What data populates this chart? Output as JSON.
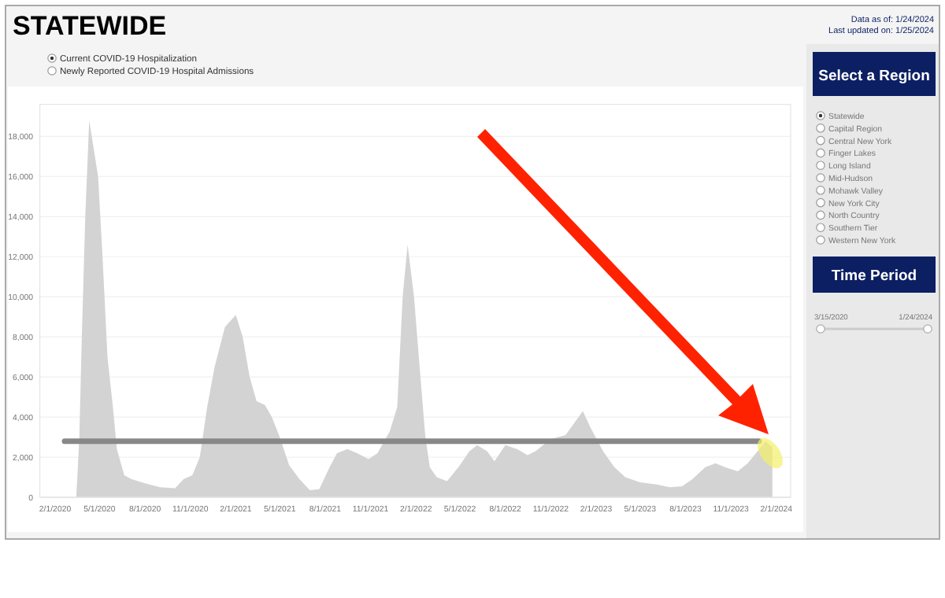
{
  "chart_data": {
    "type": "area",
    "title": "STATEWIDE",
    "x": [
      "2020-03-15",
      "2020-03-17",
      "2020-03-21",
      "2020-03-26",
      "2020-04-02",
      "2020-04-10",
      "2020-04-28",
      "2020-05-07",
      "2020-05-17",
      "2020-05-28",
      "2020-06-05",
      "2020-06-20",
      "2020-07-05",
      "2020-08-01",
      "2020-09-01",
      "2020-10-01",
      "2020-10-18",
      "2020-11-05",
      "2020-11-20",
      "2020-12-05",
      "2020-12-20",
      "2021-01-10",
      "2021-02-01",
      "2021-02-15",
      "2021-03-01",
      "2021-03-15",
      "2021-04-01",
      "2021-04-15",
      "2021-05-01",
      "2021-05-20",
      "2021-06-10",
      "2021-07-01",
      "2021-07-20",
      "2021-08-10",
      "2021-08-25",
      "2021-09-15",
      "2021-10-05",
      "2021-10-28",
      "2021-11-15",
      "2021-12-10",
      "2021-12-25",
      "2022-01-05",
      "2022-01-15",
      "2022-01-28",
      "2022-02-10",
      "2022-02-20",
      "2022-03-01",
      "2022-03-15",
      "2022-04-05",
      "2022-05-01",
      "2022-05-20",
      "2022-06-05",
      "2022-06-25",
      "2022-07-10",
      "2022-08-01",
      "2022-08-25",
      "2022-09-15",
      "2022-10-01",
      "2022-11-01",
      "2022-12-01",
      "2023-01-05",
      "2023-01-20",
      "2023-02-15",
      "2023-03-10",
      "2023-04-01",
      "2023-05-01",
      "2023-06-01",
      "2023-07-01",
      "2023-07-25",
      "2023-08-15",
      "2023-09-10",
      "2023-10-01",
      "2023-10-20",
      "2023-11-15",
      "2023-12-05",
      "2023-12-25",
      "2024-01-10",
      "2024-01-24"
    ],
    "series": [
      {
        "color": "#d3d3d3",
        "values": [
          200,
          1000,
          3000,
          8000,
          14000,
          18800,
          16000,
          12000,
          7000,
          4500,
          2400,
          1100,
          900,
          700,
          500,
          450,
          900,
          1100,
          2000,
          4500,
          6500,
          8500,
          9100,
          8000,
          6000,
          4800,
          4600,
          4000,
          3000,
          1600,
          900,
          350,
          400,
          1500,
          2200,
          2400,
          2200,
          1900,
          2200,
          3300,
          4500,
          10000,
          12600,
          10000,
          6000,
          3000,
          1500,
          1000,
          800,
          1600,
          2300,
          2600,
          2300,
          1800,
          2600,
          2400,
          2100,
          2300,
          2900,
          3100,
          4300,
          3500,
          2300,
          1500,
          1000,
          750,
          650,
          500,
          550,
          900,
          1500,
          1700,
          1500,
          1300,
          1700,
          2300,
          2800,
          2500
        ]
      }
    ],
    "xlim": [
      "2020-01-01",
      "2024-03-01"
    ],
    "xticks": [
      {
        "value": "2020-02-01",
        "label": "2/1/2020"
      },
      {
        "value": "2020-05-01",
        "label": "5/1/2020"
      },
      {
        "value": "2020-08-01",
        "label": "8/1/2020"
      },
      {
        "value": "2020-11-01",
        "label": "11/1/2020"
      },
      {
        "value": "2021-02-01",
        "label": "2/1/2021"
      },
      {
        "value": "2021-05-01",
        "label": "5/1/2021"
      },
      {
        "value": "2021-08-01",
        "label": "8/1/2021"
      },
      {
        "value": "2021-11-01",
        "label": "11/1/2021"
      },
      {
        "value": "2022-02-01",
        "label": "2/1/2022"
      },
      {
        "value": "2022-05-01",
        "label": "5/1/2022"
      },
      {
        "value": "2022-08-01",
        "label": "8/1/2022"
      },
      {
        "value": "2022-11-01",
        "label": "11/1/2022"
      },
      {
        "value": "2023-02-01",
        "label": "2/1/2023"
      },
      {
        "value": "2023-05-01",
        "label": "5/1/2023"
      },
      {
        "value": "2023-08-01",
        "label": "8/1/2023"
      },
      {
        "value": "2023-11-01",
        "label": "11/1/2023"
      },
      {
        "value": "2024-02-01",
        "label": "2/1/2024"
      }
    ],
    "ylim": [
      0,
      19600
    ],
    "yticks": [
      {
        "value": 0,
        "label": "0"
      },
      {
        "value": 2000,
        "label": "2,000"
      },
      {
        "value": 4000,
        "label": "4,000"
      },
      {
        "value": 6000,
        "label": "6,000"
      },
      {
        "value": 8000,
        "label": "8,000"
      },
      {
        "value": 10000,
        "label": "10,000"
      },
      {
        "value": 12000,
        "label": "12,000"
      },
      {
        "value": 14000,
        "label": "14,000"
      },
      {
        "value": 16000,
        "label": "16,000"
      },
      {
        "value": 18000,
        "label": "18,000"
      }
    ],
    "grid": "y",
    "ref_lines": [
      {
        "axis": "y",
        "value": 2800,
        "color": "#888888"
      }
    ],
    "annotations": [
      "Data as of: 1/24/2024",
      "Last updated on: 1/25/2024",
      "Current COVID-19 Hospitalization",
      "Newly Reported COVID-19 Hospital Admissions",
      "Select a Region",
      "Statewide",
      "Capital Region",
      "Central New York",
      "Finger Lakes",
      "Long Island",
      "Mid-Hudson",
      "Mohawk Valley",
      "New York City",
      "North Country",
      "Southern Tier",
      "Western New York",
      "Time Period",
      "3/15/2020",
      "1/24/2024"
    ]
  }
}
